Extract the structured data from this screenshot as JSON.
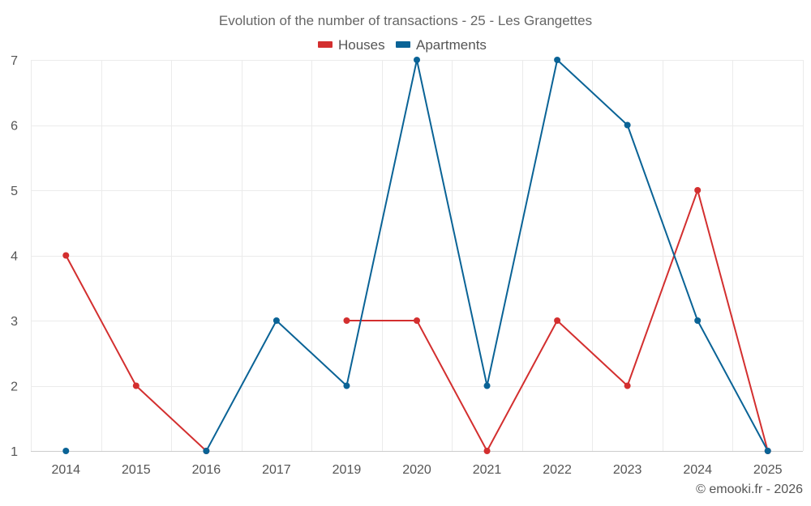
{
  "chart_data": {
    "type": "line",
    "title": "Evolution of the number of transactions - 25 - Les Grangettes",
    "categories": [
      "2014",
      "2015",
      "2016",
      "2017",
      "2019",
      "2020",
      "2021",
      "2022",
      "2023",
      "2024",
      "2025"
    ],
    "yticks": [
      "1",
      "2",
      "3",
      "4",
      "5",
      "6",
      "7"
    ],
    "ylim": [
      1,
      7
    ],
    "grid": true,
    "legend_position": "top-center",
    "series": [
      {
        "name": "Houses",
        "color": "#d32f2f",
        "values": [
          4,
          2,
          1,
          null,
          3,
          3,
          1,
          3,
          2,
          5,
          1
        ]
      },
      {
        "name": "Apartments",
        "color": "#0a6396",
        "values": [
          1,
          null,
          1,
          3,
          2,
          7,
          2,
          7,
          6,
          3,
          1
        ]
      }
    ],
    "credit": "© emooki.fr - 2026"
  }
}
